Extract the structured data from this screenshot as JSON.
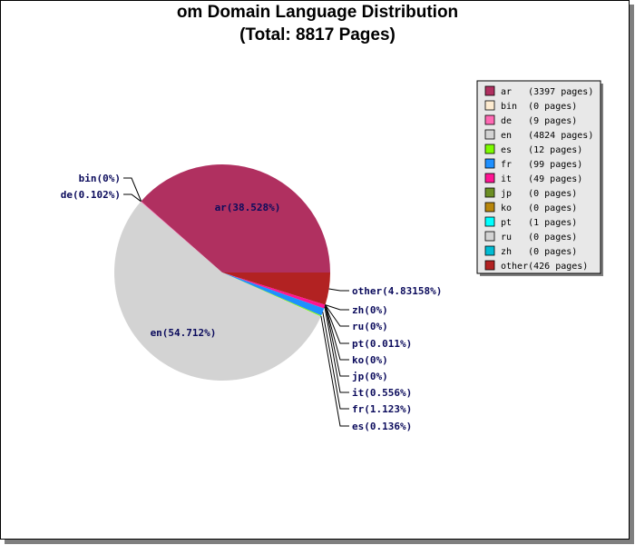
{
  "chart_data": {
    "type": "pie",
    "title": "om Domain Language Distribution",
    "subtitle": "(Total: 8817 Pages)",
    "slices": [
      {
        "code": "ar",
        "pages": 3397,
        "percent": 38.528,
        "label": "ar(38.528%)",
        "legend": "ar   (3397 pages)",
        "color": "#b03060"
      },
      {
        "code": "bin",
        "pages": 0,
        "percent": 0,
        "label": "bin(0%)",
        "legend": "bin  (0 pages)",
        "color": "#fdebd0"
      },
      {
        "code": "de",
        "pages": 9,
        "percent": 0.102,
        "label": "de(0.102%)",
        "legend": "de   (9 pages)",
        "color": "#ff69b4"
      },
      {
        "code": "en",
        "pages": 4824,
        "percent": 54.712,
        "label": "en(54.712%)",
        "legend": "en   (4824 pages)",
        "color": "#d3d3d3"
      },
      {
        "code": "es",
        "pages": 12,
        "percent": 0.136,
        "label": "es(0.136%)",
        "legend": "es   (12 pages)",
        "color": "#7cfc00"
      },
      {
        "code": "fr",
        "pages": 99,
        "percent": 1.123,
        "label": "fr(1.123%)",
        "legend": "fr   (99 pages)",
        "color": "#1e90ff"
      },
      {
        "code": "it",
        "pages": 49,
        "percent": 0.556,
        "label": "it(0.556%)",
        "legend": "it   (49 pages)",
        "color": "#ff1493"
      },
      {
        "code": "jp",
        "pages": 0,
        "percent": 0,
        "label": "jp(0%)",
        "legend": "jp   (0 pages)",
        "color": "#6b8e23"
      },
      {
        "code": "ko",
        "pages": 0,
        "percent": 0,
        "label": "ko(0%)",
        "legend": "ko   (0 pages)",
        "color": "#b8860b"
      },
      {
        "code": "pt",
        "pages": 1,
        "percent": 0.011,
        "label": "pt(0.011%)",
        "legend": "pt   (1 pages)",
        "color": "#00ffff"
      },
      {
        "code": "ru",
        "pages": 0,
        "percent": 0,
        "label": "ru(0%)",
        "legend": "ru   (0 pages)",
        "color": "#d3d3d3"
      },
      {
        "code": "zh",
        "pages": 0,
        "percent": 0,
        "label": "zh(0%)",
        "legend": "zh   (0 pages)",
        "color": "#00bcd4"
      },
      {
        "code": "other",
        "pages": 426,
        "percent": 4.83158,
        "label": "other(4.83158%)",
        "legend": "other(426 pages)",
        "color": "#b22222"
      }
    ],
    "legend_position": "right"
  }
}
